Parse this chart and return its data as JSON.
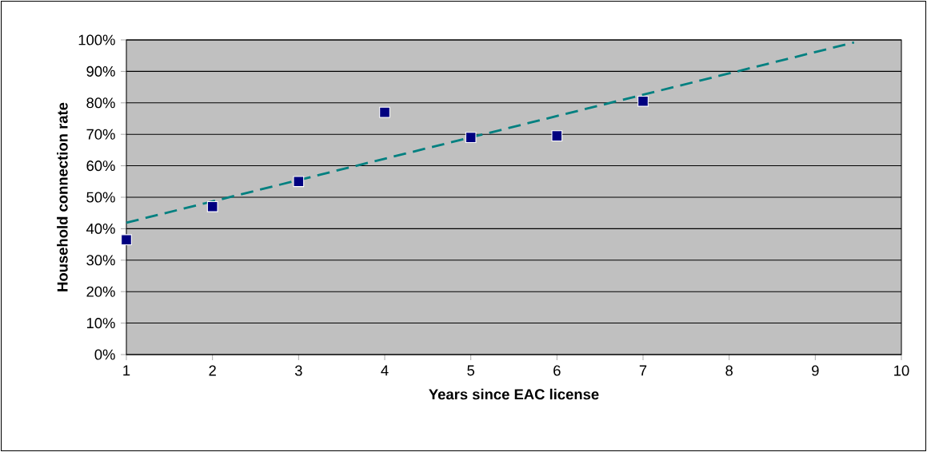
{
  "chart_data": {
    "type": "scatter",
    "xlabel": "Years since EAC license",
    "ylabel": "Household connection rate",
    "xlim": [
      1,
      10
    ],
    "ylim": [
      0,
      100
    ],
    "xticks": [
      1,
      2,
      3,
      4,
      5,
      6,
      7,
      8,
      9,
      10
    ],
    "yticks": [
      {
        "value": 0,
        "label": "0%"
      },
      {
        "value": 10,
        "label": "10%"
      },
      {
        "value": 20,
        "label": "20%"
      },
      {
        "value": 30,
        "label": "30%"
      },
      {
        "value": 40,
        "label": "40%"
      },
      {
        "value": 50,
        "label": "50%"
      },
      {
        "value": 60,
        "label": "60%"
      },
      {
        "value": 70,
        "label": "70%"
      },
      {
        "value": 80,
        "label": "80%"
      },
      {
        "value": 90,
        "label": "90%"
      },
      {
        "value": 100,
        "label": "100%"
      }
    ],
    "grid": "y",
    "series": [
      {
        "color": "#000080",
        "marker": "square",
        "x": [
          1,
          2,
          3,
          4,
          5,
          6,
          7
        ],
        "values": [
          36.5,
          47,
          55,
          77,
          69,
          69.5,
          80.5
        ]
      },
      {
        "type": "line",
        "color": "#008080",
        "line_style": "dashed",
        "marker": "none",
        "x": [
          1,
          9.45
        ],
        "values": [
          41.9,
          99.2
        ]
      }
    ]
  }
}
